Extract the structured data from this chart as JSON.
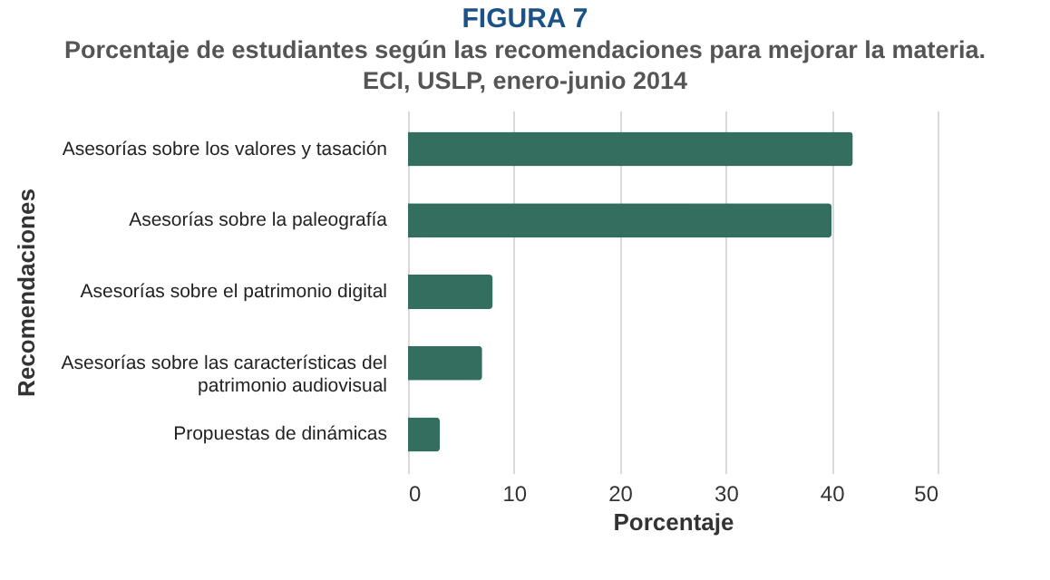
{
  "chart_data": {
    "type": "bar",
    "orientation": "horizontal",
    "title": "FIGURA 7",
    "subtitle": "Porcentaje de estudiantes según las recomendaciones para mejorar la materia. ECI, USLP, enero-junio 2014",
    "categories": [
      "Asesorías sobre los valores y tasación",
      "Asesorías sobre la paleografía",
      "Asesorías sobre el patrimonio digital",
      "Asesorías sobre las características del patrimonio audiovisual",
      "Propuestas de dinámicas"
    ],
    "values": [
      42,
      40,
      8,
      7,
      3
    ],
    "color": "#336e5f",
    "xlim": [
      0,
      50
    ],
    "xticks": [
      0,
      10,
      20,
      30,
      40,
      50
    ],
    "grid": "x",
    "xlabel": "Porcentaje",
    "ylabel": "Recomendaciones"
  }
}
